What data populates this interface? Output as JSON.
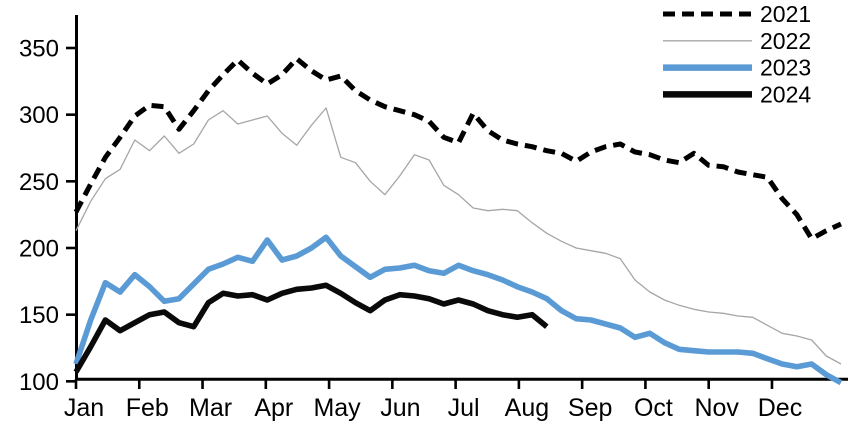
{
  "chart_data": {
    "type": "line",
    "title": "",
    "xlabel": "",
    "ylabel": "",
    "grid": false,
    "x_axis": {
      "tick_labels": [
        "Jan",
        "Feb",
        "Mar",
        "Apr",
        "May",
        "Jun",
        "Jul",
        "Aug",
        "Sep",
        "Oct",
        "Nov",
        "Dec"
      ],
      "note": "weekly data points spanning Jan-Dec"
    },
    "y_axis": {
      "ticks": [
        100,
        150,
        200,
        250,
        300,
        350
      ],
      "min": 100,
      "max": 375
    },
    "legend": {
      "position": "top-right",
      "entries": [
        {
          "label": "2021",
          "style": "dashed",
          "color": "#000000"
        },
        {
          "label": "2022",
          "style": "thin",
          "color": "#a6a6a6"
        },
        {
          "label": "2023",
          "style": "thick",
          "color": "#5b9bd5"
        },
        {
          "label": "2024",
          "style": "thick",
          "color": "#0a0a0a"
        }
      ]
    },
    "series": [
      {
        "name": "2021",
        "color": "#000000",
        "style": "dashed",
        "values": [
          227,
          248,
          268,
          283,
          299,
          307,
          306,
          289,
          303,
          318,
          330,
          341,
          331,
          323,
          330,
          342,
          333,
          326,
          329,
          318,
          311,
          306,
          303,
          300,
          295,
          283,
          279,
          301,
          288,
          281,
          278,
          276,
          273,
          271,
          265,
          272,
          276,
          278,
          272,
          270,
          266,
          264,
          271,
          262,
          261,
          257,
          255,
          253,
          237,
          225,
          207,
          213,
          218
        ]
      },
      {
        "name": "2022",
        "color": "#a6a6a6",
        "style": "thin",
        "values": [
          213,
          235,
          252,
          259,
          281,
          273,
          284,
          271,
          278,
          296,
          303,
          293,
          296,
          299,
          286,
          277,
          292,
          305,
          268,
          264,
          250,
          240,
          254,
          270,
          266,
          247,
          240,
          230,
          228,
          229,
          228,
          219,
          211,
          205,
          200,
          198,
          196,
          192,
          176,
          167,
          161,
          157,
          154,
          152,
          151,
          149,
          148,
          142,
          136,
          134,
          131,
          119,
          113
        ]
      },
      {
        "name": "2023",
        "color": "#5b9bd5",
        "style": "thick",
        "values": [
          113,
          146,
          174,
          167,
          180,
          171,
          160,
          162,
          173,
          184,
          188,
          193,
          190,
          206,
          191,
          194,
          200,
          208,
          194,
          186,
          178,
          184,
          185,
          187,
          183,
          181,
          187,
          183,
          180,
          176,
          171,
          167,
          162,
          153,
          147,
          146,
          143,
          140,
          133,
          136,
          129,
          124,
          123,
          122,
          122,
          122,
          121,
          117,
          113,
          111,
          113,
          105,
          99
        ]
      },
      {
        "name": "2024",
        "color": "#0a0a0a",
        "style": "thick",
        "values": [
          107,
          126,
          146,
          138,
          144,
          150,
          152,
          144,
          141,
          159,
          166,
          164,
          165,
          161,
          166,
          169,
          170,
          172,
          166,
          159,
          153,
          161,
          165,
          164,
          162,
          158,
          161,
          158,
          153,
          150,
          148,
          150,
          141
        ]
      }
    ]
  }
}
